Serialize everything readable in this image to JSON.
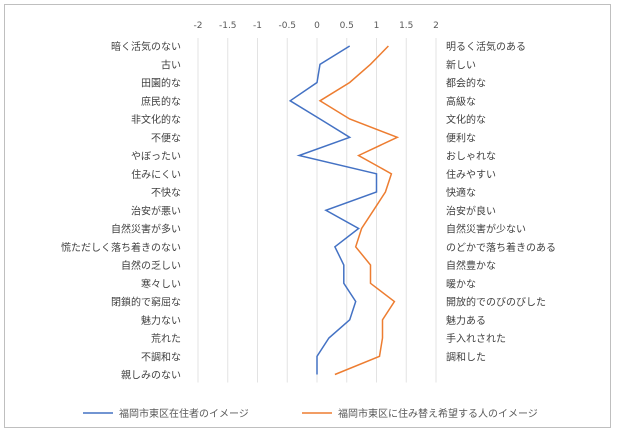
{
  "chart_data": {
    "type": "line",
    "orientation": "horizontal-profile",
    "title": "",
    "xlim": [
      -2,
      2
    ],
    "x_ticks": [
      "-2",
      "-1.5",
      "-1",
      "-0.5",
      "0",
      "0.5",
      "1",
      "1.5",
      "2"
    ],
    "x_tick_values": [
      -2,
      -1.5,
      -1,
      -0.5,
      0,
      0.5,
      1,
      1.5,
      2
    ],
    "grid": true,
    "legend_position": "bottom",
    "left_labels": [
      "暗く活気のない",
      "古い",
      "田園的な",
      "庶民的な",
      "非文化的な",
      "不便な",
      "やぼったい",
      "住みにくい",
      "不快な",
      "治安が悪い",
      "自然災害が多い",
      "慌ただしく落ち着きのない",
      "自然の乏しい",
      "寒々しい",
      "閉鎖的で窮屈な",
      "魅力ない",
      "荒れた",
      "不調和な",
      "親しみのない"
    ],
    "right_labels": [
      "明るく活気のある",
      "新しい",
      "都会的な",
      "高級な",
      "文化的な",
      "便利な",
      "おしゃれな",
      "住みやすい",
      "快適な",
      "治安が良い",
      "自然災害が少ない",
      "のどかで落ち着きのある",
      "自然豊かな",
      "暖かな",
      "開放的でのびのびした",
      "魅力ある",
      "手入れされた",
      "調和した",
      ""
    ],
    "series": [
      {
        "name": "福岡市東区在住者のイメージ",
        "color": "#4472c4",
        "values": [
          0.55,
          0.05,
          0.0,
          -0.45,
          0.05,
          0.55,
          -0.3,
          1.0,
          1.0,
          0.15,
          0.7,
          0.3,
          0.45,
          0.45,
          0.65,
          0.55,
          0.2,
          0.0,
          0.0
        ]
      },
      {
        "name": "福岡市東区に住み替え希望する人のイメージ",
        "color": "#ed7d31",
        "values": [
          1.2,
          0.9,
          0.55,
          0.05,
          0.55,
          1.35,
          0.7,
          1.25,
          1.15,
          0.95,
          0.75,
          0.65,
          0.9,
          0.9,
          1.3,
          1.1,
          1.1,
          1.05,
          0.3
        ]
      }
    ]
  }
}
